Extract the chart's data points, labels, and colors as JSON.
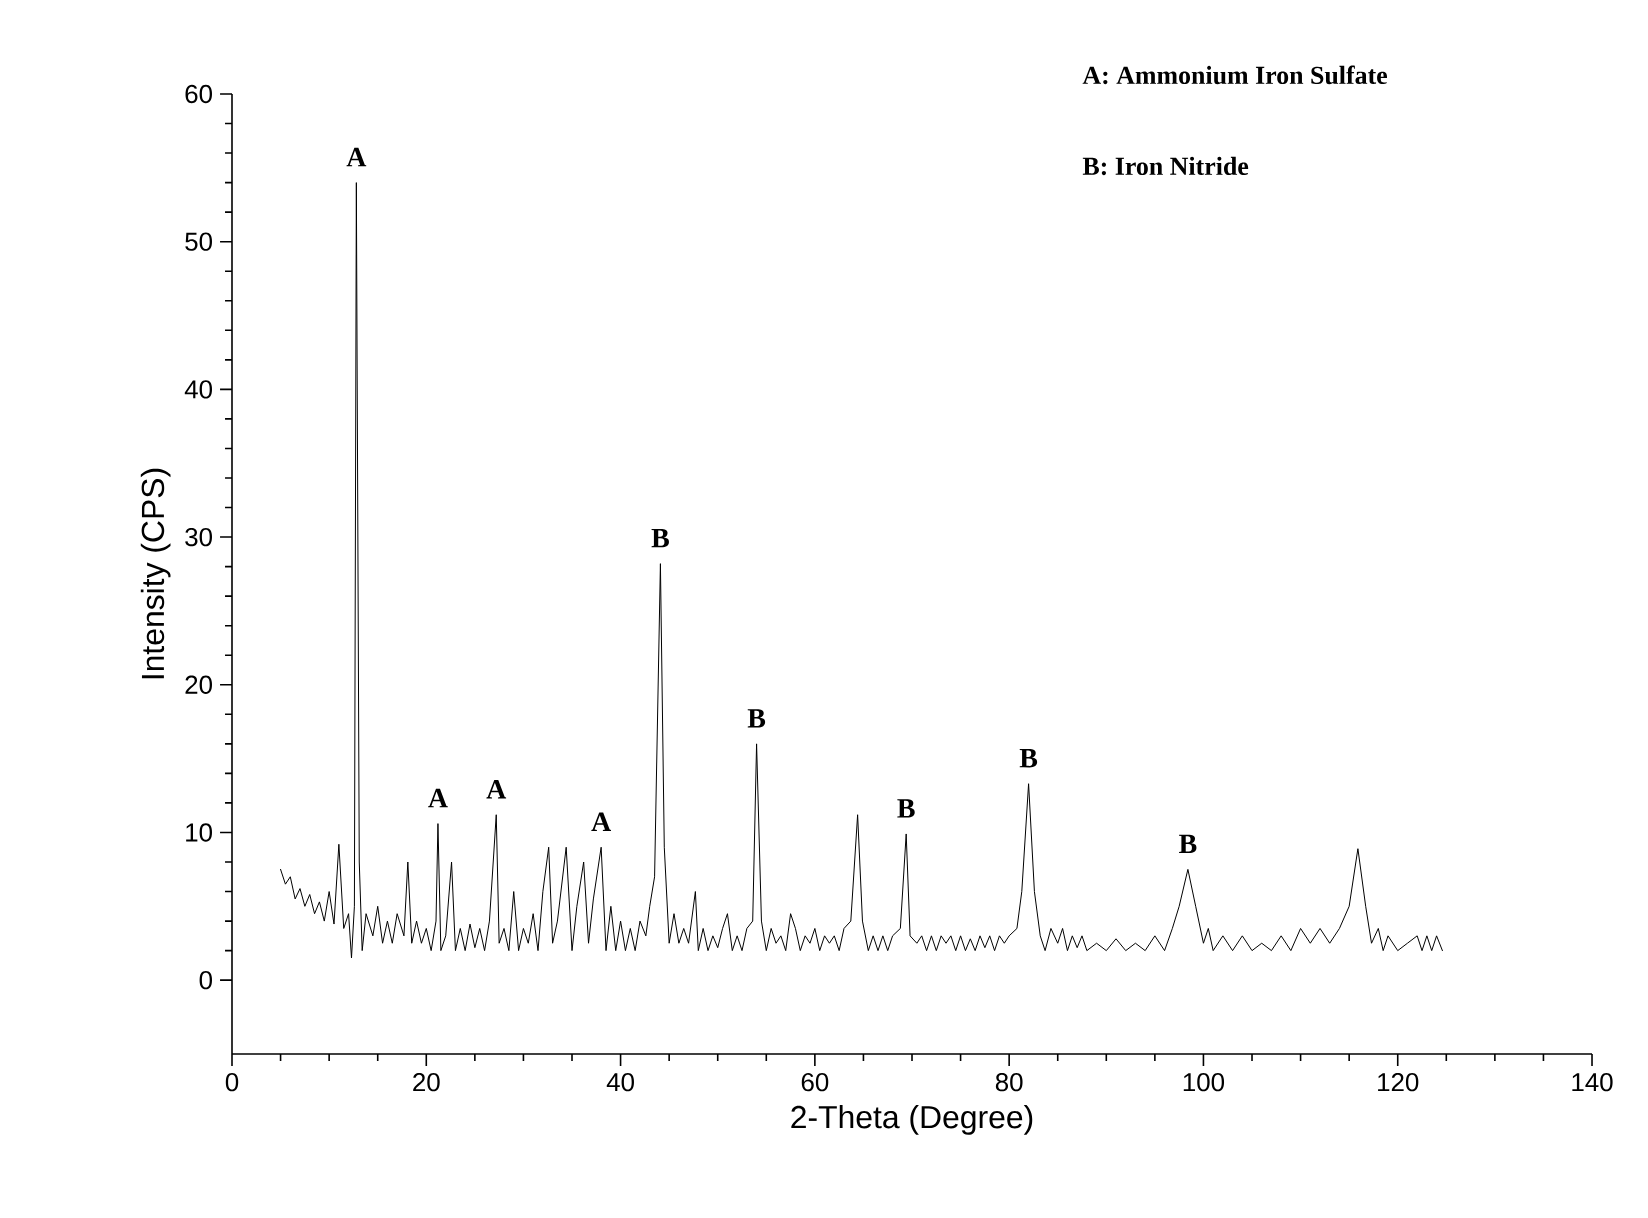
{
  "chart_data": {
    "type": "line",
    "xlabel": "2-Theta (Degree)",
    "ylabel": "Intensity (CPS)",
    "xlim": [
      0,
      140
    ],
    "ylim": [
      -5,
      60
    ],
    "xticks": [
      0,
      20,
      40,
      60,
      80,
      100,
      120,
      140
    ],
    "yticks": [
      0,
      10,
      20,
      30,
      40,
      50,
      60
    ],
    "series": [
      {
        "color": "#000000",
        "x": [
          5,
          5.5,
          6,
          6.5,
          7,
          7.5,
          8,
          8.5,
          9,
          9.5,
          10,
          10.5,
          11,
          11.5,
          12,
          12.3,
          12.6,
          12.8,
          13.1,
          13.4,
          13.8,
          14.5,
          15,
          15.5,
          16,
          16.5,
          17,
          17.7,
          18.1,
          18.5,
          19,
          19.5,
          20,
          20.5,
          21,
          21.2,
          21.5,
          22,
          22.6,
          23,
          23.5,
          24,
          24.5,
          25,
          25.5,
          26,
          26.5,
          27.2,
          27.5,
          28,
          28.5,
          29,
          29.5,
          30,
          30.5,
          31,
          31.5,
          32,
          32.6,
          33,
          33.5,
          34.4,
          35,
          35.5,
          36.2,
          36.7,
          37.2,
          38,
          38.5,
          39,
          39.5,
          40,
          40.5,
          41,
          41.5,
          42,
          42.6,
          43,
          43.5,
          44.1,
          44.5,
          45,
          45.5,
          46,
          46.5,
          47,
          47.7,
          48,
          48.5,
          49,
          49.5,
          50,
          50.5,
          51,
          51.5,
          52,
          52.5,
          53,
          53.6,
          54,
          54.5,
          55,
          55.5,
          56,
          56.5,
          57,
          57.5,
          58,
          58.5,
          59,
          59.5,
          60,
          60.5,
          61,
          61.5,
          62,
          62.5,
          63,
          63.7,
          64.4,
          64.9,
          65.5,
          66,
          66.5,
          67,
          67.5,
          68,
          68.8,
          69.4,
          69.8,
          70.5,
          71,
          71.5,
          72,
          72.5,
          73,
          73.5,
          74,
          74.5,
          75,
          75.5,
          76,
          76.5,
          77,
          77.5,
          78,
          78.5,
          79,
          79.5,
          80,
          80.8,
          81.3,
          82,
          82.6,
          83.2,
          83.7,
          84.3,
          85,
          85.5,
          86,
          86.5,
          87,
          87.5,
          88,
          89,
          90,
          91,
          92,
          93,
          94,
          95,
          96,
          96.8,
          97.5,
          98.4,
          99.2,
          100,
          100.5,
          101,
          102,
          103,
          104,
          105,
          106,
          107,
          108,
          109,
          110,
          111,
          112,
          113,
          114,
          115,
          115.9,
          116.7,
          117.3,
          118,
          118.5,
          119,
          120,
          121,
          122,
          122.5,
          123,
          123.5,
          124,
          124.6
        ],
        "values": [
          7.5,
          6.5,
          7,
          5.5,
          6.2,
          5,
          5.8,
          4.5,
          5.3,
          4,
          6,
          3.8,
          9.2,
          3.5,
          4.5,
          1.5,
          5,
          54,
          8,
          2,
          4.5,
          3,
          5,
          2.5,
          4,
          2.5,
          4.5,
          3,
          8,
          2.5,
          4,
          2.5,
          3.5,
          2,
          4,
          10.6,
          2,
          3,
          8,
          2,
          3.5,
          2,
          3.8,
          2.2,
          3.5,
          2,
          4,
          11.2,
          2.5,
          3.5,
          2,
          6,
          2,
          3.5,
          2.5,
          4.5,
          2,
          6,
          9,
          2.5,
          4,
          9,
          2,
          5,
          8,
          2.5,
          5.5,
          9,
          2,
          5,
          2,
          4,
          2,
          3.5,
          2,
          4,
          3,
          5,
          7,
          28.2,
          9,
          2.5,
          4.5,
          2.5,
          3.5,
          2.5,
          6,
          2,
          3.5,
          2,
          3,
          2.2,
          3.5,
          4.5,
          2,
          3,
          2,
          3.5,
          4,
          16,
          4,
          2,
          3.5,
          2.5,
          3,
          2,
          4.5,
          3.5,
          2,
          3,
          2.5,
          3.5,
          2,
          3,
          2.5,
          3,
          2,
          3.5,
          4,
          11.2,
          4,
          2,
          3,
          2,
          3,
          2,
          3,
          3.5,
          9.9,
          3,
          2.5,
          3,
          2,
          3,
          2,
          3,
          2.5,
          3,
          2,
          3,
          2,
          2.8,
          2,
          3,
          2.2,
          3,
          2,
          3,
          2.5,
          3,
          3.5,
          6,
          13.3,
          6,
          3,
          2,
          3.5,
          2.5,
          3.5,
          2,
          3,
          2.2,
          3,
          2,
          2.5,
          2,
          2.8,
          2,
          2.5,
          2,
          3,
          2,
          3.5,
          5,
          7.5,
          5,
          2.5,
          3.5,
          2,
          3,
          2,
          3,
          2,
          2.5,
          2,
          3,
          2,
          3.5,
          2.5,
          3.5,
          2.5,
          3.5,
          5,
          8.9,
          5,
          2.5,
          3.5,
          2,
          3,
          2,
          2.5,
          3,
          2,
          3,
          2,
          3,
          2
        ]
      }
    ],
    "annotations": [
      "A: Ammonium Iron Sulfate",
      "B: Iron Nitride",
      {
        "text": "A",
        "x": 12.8,
        "y": 54
      },
      {
        "text": "A",
        "x": 21.2,
        "y": 10.6
      },
      {
        "text": "A",
        "x": 27.2,
        "y": 11.2
      },
      {
        "text": "A",
        "x": 38,
        "y": 9
      },
      {
        "text": "B",
        "x": 44.1,
        "y": 28.2
      },
      {
        "text": "B",
        "x": 54,
        "y": 16
      },
      {
        "text": "B",
        "x": 69.4,
        "y": 9.9
      },
      {
        "text": "B",
        "x": 82,
        "y": 13.3
      },
      {
        "text": "B",
        "x": 98.4,
        "y": 7.5
      }
    ]
  }
}
